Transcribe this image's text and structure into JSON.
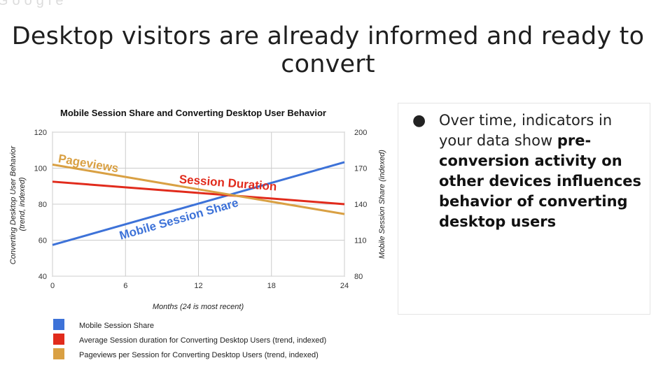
{
  "slide": {
    "logo_fragment": "Google",
    "title": "Desktop visitors are already informed and ready to convert",
    "bullet": {
      "normal": "Over time, indicators in your data show ",
      "bold": "pre-conversion activity on other devices influences behavior of converting desktop users"
    }
  },
  "chart_data": {
    "type": "line",
    "title": "Mobile Session Share and Converting Desktop User Behavior",
    "xlabel": "Months (24 is most recent)",
    "ylabel_left": "Converting Desktop User Behavior (trend, indexed)",
    "ylabel_right": "Mobile Session Share (indexed)",
    "x_ticks": [
      0,
      6,
      12,
      18,
      24
    ],
    "y_left_ticks": [
      40,
      60,
      80,
      100,
      120
    ],
    "y_right_ticks": [
      80,
      110,
      140,
      170,
      200
    ],
    "xlim": [
      0,
      24
    ],
    "ylim_left": [
      40,
      120
    ],
    "ylim_right": [
      80,
      200
    ],
    "grid": true,
    "series": [
      {
        "name": "Mobile Session Share",
        "axis": "right",
        "color": "#3d72d8",
        "label": "Mobile Session Share",
        "x": [
          0,
          24
        ],
        "y": [
          106,
          175
        ]
      },
      {
        "name": "Average Session duration for Converting Desktop Users (trend, indexed)",
        "axis": "left",
        "color": "#e12b1c",
        "label": "Session Duration",
        "x": [
          0,
          24
        ],
        "y": [
          92.5,
          80
        ]
      },
      {
        "name": "Pageviews per Session for Converting Desktop Users (trend, indexed)",
        "axis": "left",
        "color": "#d9a043",
        "label": "Pageviews",
        "x": [
          0,
          24
        ],
        "y": [
          102,
          74.5
        ]
      }
    ],
    "legend_position": "bottom-left"
  }
}
